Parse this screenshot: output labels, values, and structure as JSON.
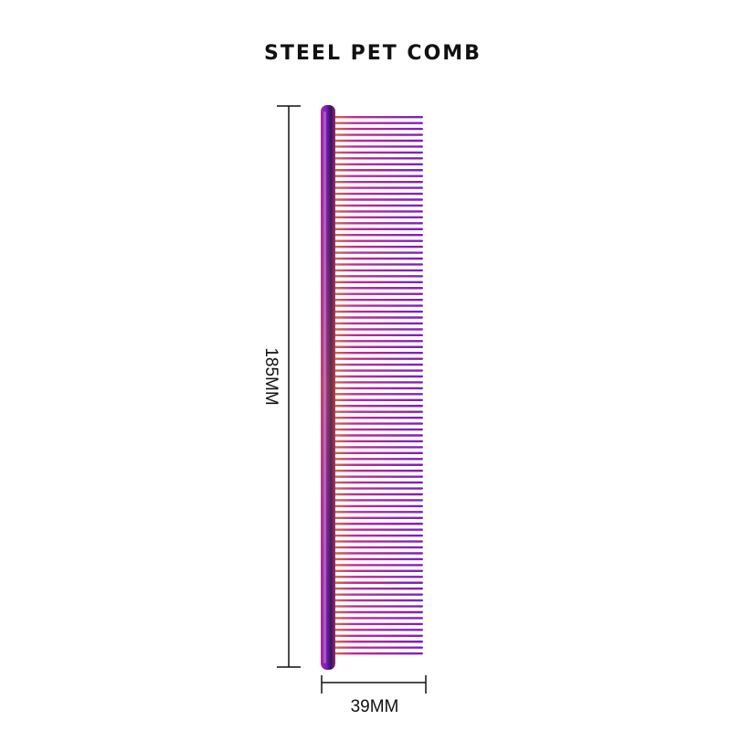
{
  "title": "STEEL PET COMB",
  "dimensions": {
    "height_label": "185MM",
    "width_label": "39MM"
  },
  "product": {
    "finish_colors": {
      "purple": "#7a1fc2",
      "magenta": "#c22a8f",
      "orange": "#e0722f",
      "dark": "#2a0a40"
    },
    "line_color": "#111111"
  }
}
